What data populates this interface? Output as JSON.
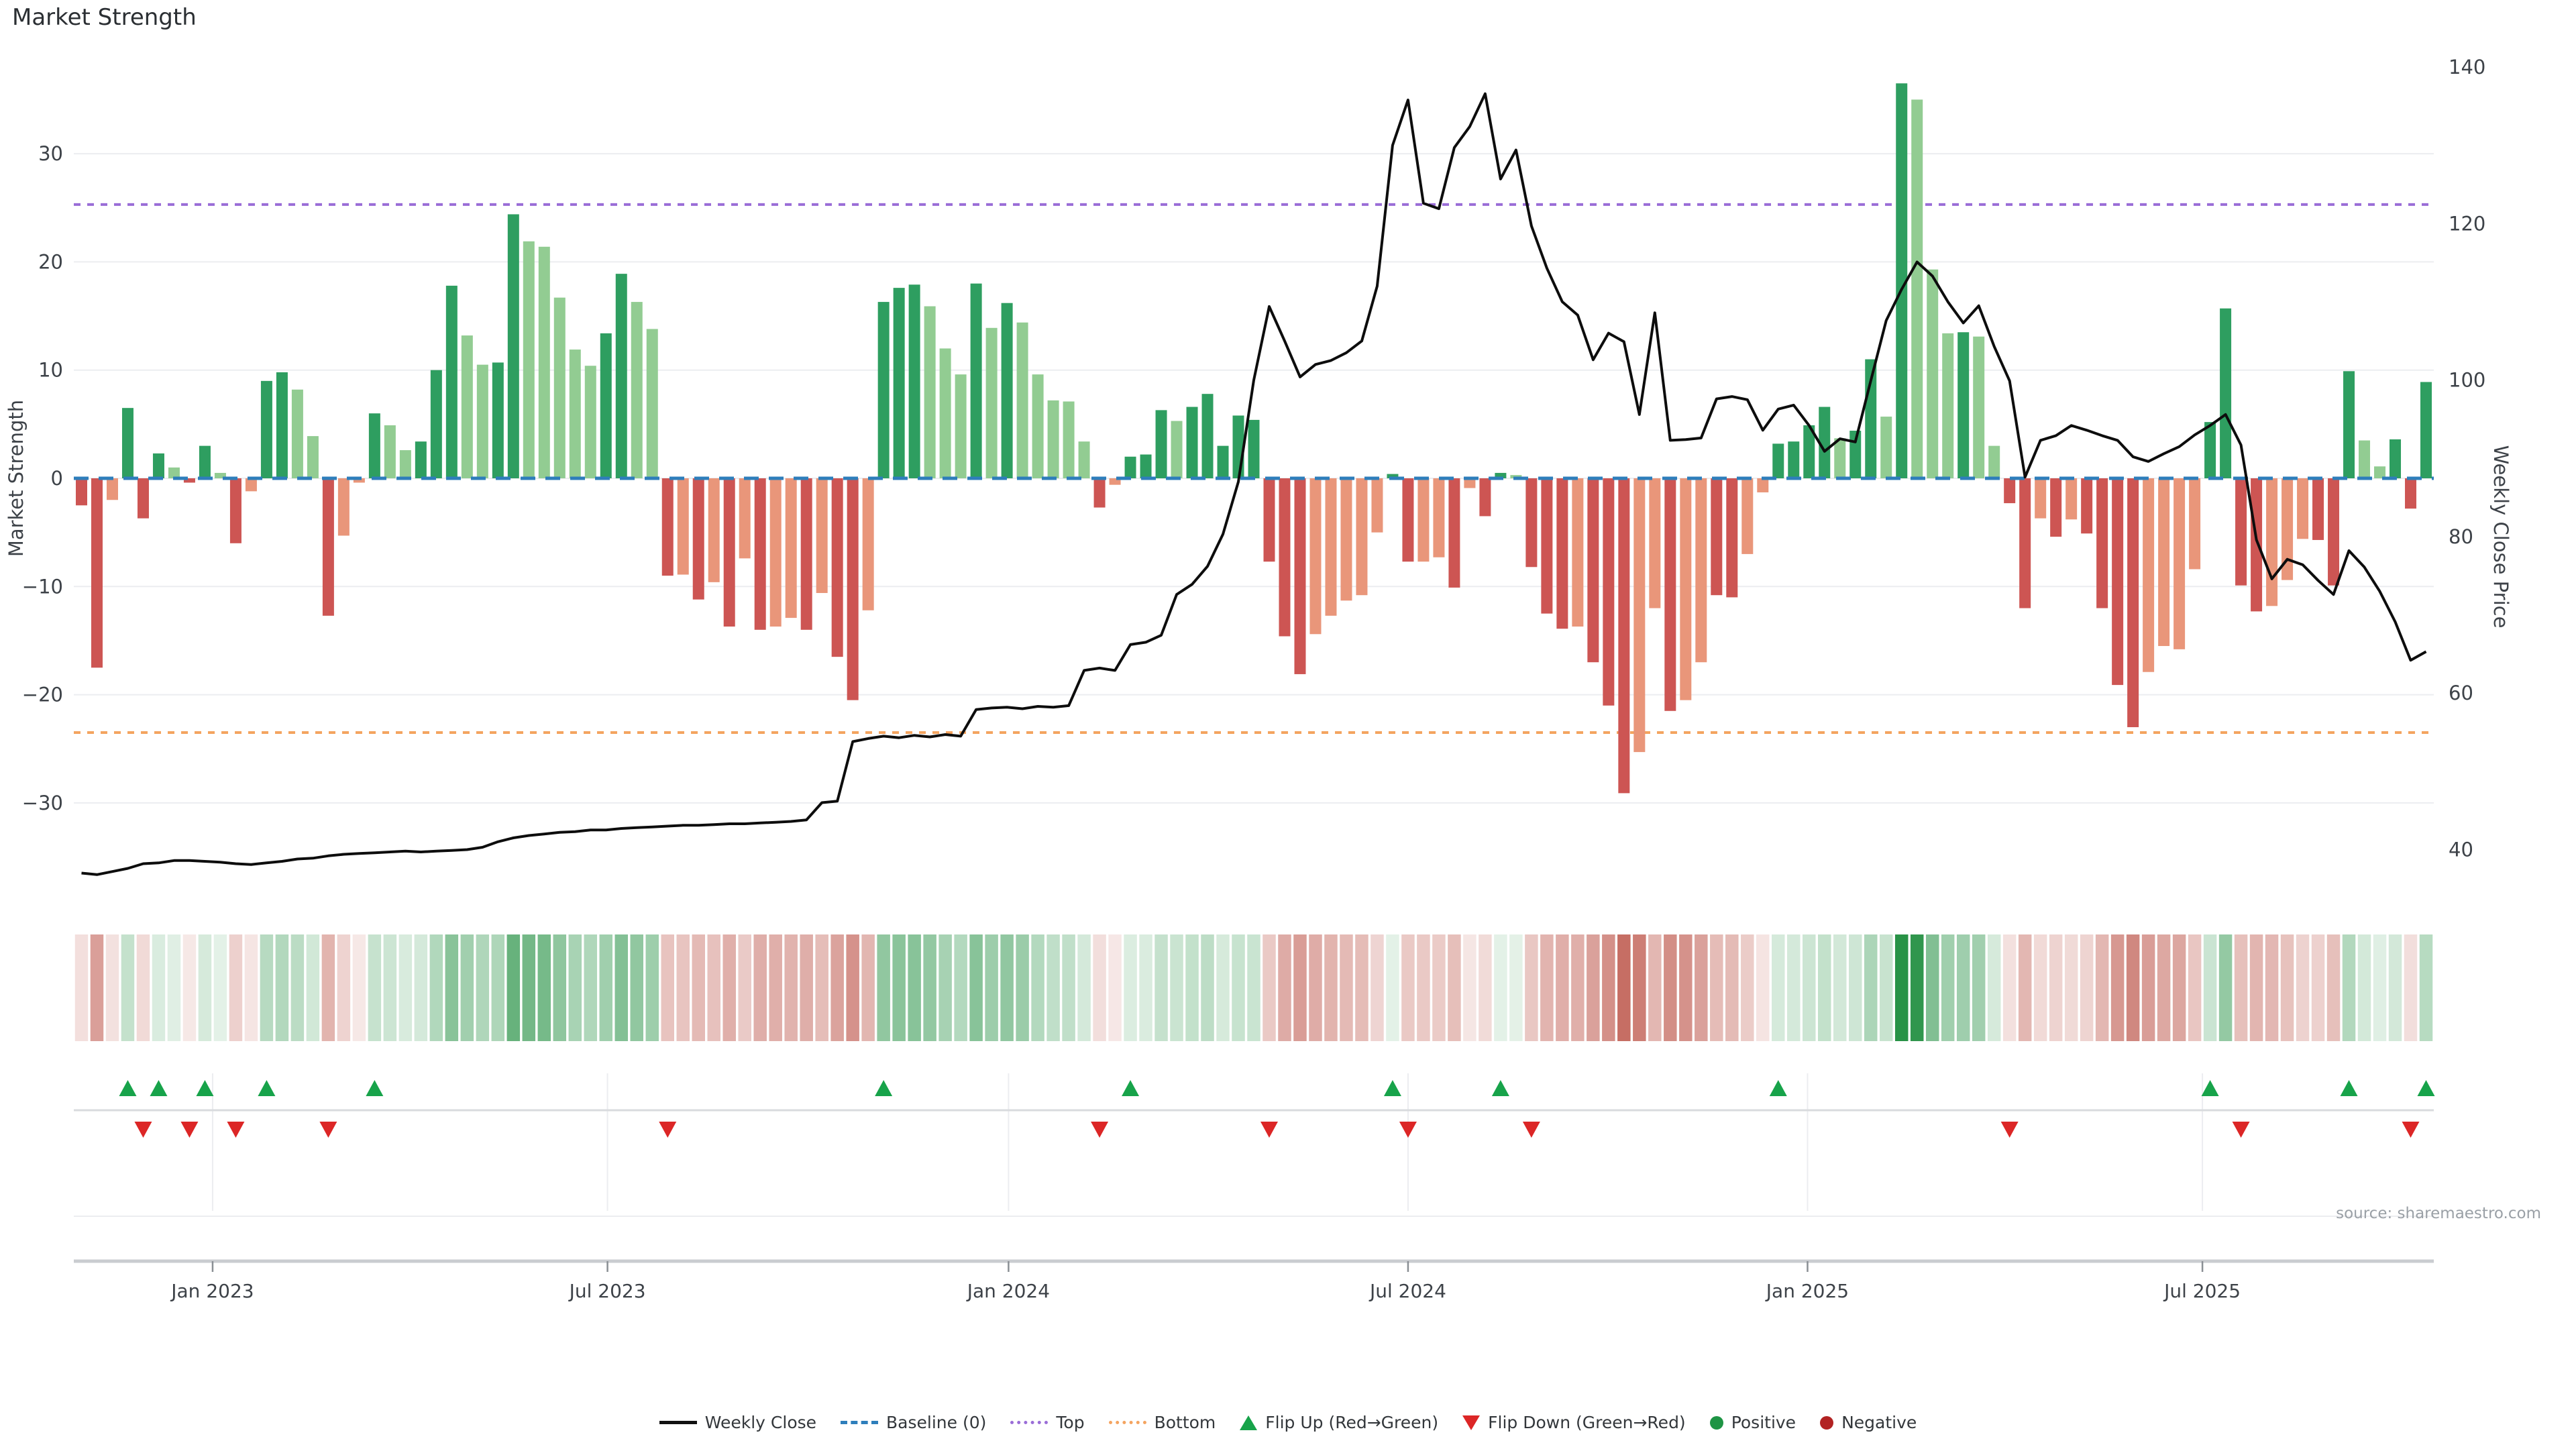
{
  "title": "Market Strength",
  "source": {
    "text": "source: sharemaestro.com"
  },
  "axes": {
    "left_title": "Market Strength",
    "right_title": "Weekly Close Price",
    "left_ticks": [
      30,
      20,
      10,
      0,
      -10,
      -20,
      -30
    ],
    "right_ticks": [
      140,
      120,
      100,
      80,
      60,
      40
    ]
  },
  "colors": {
    "bar_pos_dark": "#2e9e60",
    "bar_pos_light": "#92cc92",
    "bar_neg_dark": "#cd5553",
    "bar_neg_light": "#e9967a",
    "baseline": "#2e7ebb",
    "top_line": "#9a6dd7",
    "bottom_line": "#f4a460",
    "price_line": "#0d0d0d",
    "flip_up": "#17a34a",
    "flip_down": "#dc2626",
    "positive_dot": "#1e9444",
    "negative_dot": "#b22222",
    "grid": "#ecedf0",
    "spine": "#c9ccd0",
    "tick_text": "#3d4248",
    "heat_green": [
      40,
      146,
      70
    ],
    "heat_red": [
      186,
      78,
      66
    ]
  },
  "legend": {
    "items": [
      {
        "label": "Weekly Close",
        "swatch": "line"
      },
      {
        "label": "Baseline (0)",
        "swatch": "dashed"
      },
      {
        "label": "Top",
        "swatch": "dotted"
      },
      {
        "label": "Bottom",
        "swatch": "dotted-orange"
      },
      {
        "label": "Flip Up (Red→Green)",
        "swatch": "triangle-up"
      },
      {
        "label": "Flip Down (Green→Red)",
        "swatch": "triangle-down"
      },
      {
        "label": "Positive",
        "swatch": "circle-green"
      },
      {
        "label": "Negative",
        "swatch": "circle-red"
      }
    ]
  },
  "chart_data": {
    "type": "bar",
    "subtype": "bar+line+heatmap combo, weekly",
    "title": "Market Strength",
    "xlabel": "",
    "ylabel_left": "Market Strength",
    "ylabel_right": "Weekly Close Price",
    "ylim_left": [
      -38,
      38
    ],
    "ylim_right": [
      32,
      145
    ],
    "grid": "horizontal",
    "legend_position": "bottom-center",
    "baseline": 0,
    "top_threshold": 25.3,
    "bottom_threshold": -23.5,
    "weeks": 153,
    "x_ticks": [
      {
        "label": "Jan 2023",
        "week": 8.5
      },
      {
        "label": "Jul 2023",
        "week": 34.1
      },
      {
        "label": "Jan 2024",
        "week": 60.1
      },
      {
        "label": "Jul 2024",
        "week": 86.0
      },
      {
        "label": "Jan 2025",
        "week": 111.9
      },
      {
        "label": "Jul 2025",
        "week": 137.5
      }
    ],
    "series": [
      {
        "name": "Market Strength",
        "type": "bar",
        "axis": "left",
        "values": [
          -2.5,
          -17.5,
          -2,
          6.5,
          -3.7,
          2.3,
          1,
          -0.4,
          3,
          0.5,
          -6,
          -1.2,
          9,
          9.8,
          8.2,
          3.9,
          -12.7,
          -5.3,
          -0.4,
          6,
          4.9,
          2.6,
          3.4,
          10,
          17.8,
          13.2,
          10.5,
          10.7,
          24.4,
          21.9,
          21.4,
          16.7,
          11.9,
          10.4,
          13.4,
          18.9,
          16.3,
          13.8,
          -9,
          -8.9,
          -11.2,
          -9.6,
          -13.7,
          -7.4,
          -14,
          -13.7,
          -12.9,
          -14,
          -10.6,
          -16.5,
          -20.5,
          -12.2,
          16.3,
          17.6,
          17.9,
          15.9,
          12,
          9.6,
          18,
          13.9,
          16.2,
          14.4,
          9.6,
          7.2,
          7.1,
          3.4,
          -2.7,
          -0.6,
          2,
          2.2,
          6.3,
          5.3,
          6.6,
          7.8,
          3,
          5.8,
          5.4,
          -7.7,
          -14.6,
          -18.1,
          -14.4,
          -12.7,
          -11.3,
          -10.8,
          -5,
          0.4,
          -7.7,
          -7.7,
          -7.3,
          -10.1,
          -0.9,
          -3.5,
          0.5,
          0.3,
          -8.2,
          -12.5,
          -13.9,
          -13.7,
          -17,
          -21,
          -29.1,
          -25.3,
          -12,
          -21.5,
          -20.5,
          -17,
          -10.8,
          -11,
          -7,
          -1.3,
          3.2,
          3.4,
          4.9,
          6.6,
          3.7,
          4.4,
          11,
          5.7,
          36.5,
          35,
          19.3,
          13.4,
          13.5,
          13.1,
          3,
          -2.3,
          -12,
          -3.7,
          -5.4,
          -3.8,
          -5.1,
          -12,
          -19.1,
          -23,
          -17.9,
          -15.5,
          -15.8,
          -8.4,
          5.2,
          15.7,
          -9.9,
          -12.3,
          -11.8,
          -9.4,
          -5.6,
          -5.7,
          -9.9,
          9.9,
          3.5,
          1.1,
          3.6,
          -2.8,
          8.9
        ],
        "tones": [
          "d",
          "d",
          "l",
          "d",
          "d",
          "d",
          "l",
          "d",
          "d",
          "l",
          "d",
          "l",
          "d",
          "d",
          "l",
          "l",
          "d",
          "l",
          "l",
          "d",
          "l",
          "l",
          "d",
          "d",
          "d",
          "l",
          "l",
          "d",
          "d",
          "l",
          "l",
          "l",
          "l",
          "l",
          "d",
          "d",
          "l",
          "l",
          "d",
          "l",
          "d",
          "l",
          "d",
          "l",
          "d",
          "l",
          "l",
          "d",
          "l",
          "d",
          "d",
          "l",
          "d",
          "d",
          "d",
          "l",
          "l",
          "l",
          "d",
          "l",
          "d",
          "l",
          "l",
          "l",
          "l",
          "l",
          "d",
          "l",
          "d",
          "d",
          "d",
          "l",
          "d",
          "d",
          "d",
          "d",
          "d",
          "d",
          "d",
          "d",
          "l",
          "l",
          "l",
          "l",
          "l",
          "d",
          "d",
          "l",
          "l",
          "d",
          "l",
          "d",
          "d",
          "l",
          "d",
          "d",
          "d",
          "l",
          "d",
          "d",
          "d",
          "l",
          "l",
          "d",
          "l",
          "l",
          "d",
          "d",
          "l",
          "l",
          "d",
          "d",
          "d",
          "d",
          "l",
          "d",
          "d",
          "l",
          "d",
          "l",
          "l",
          "l",
          "d",
          "l",
          "l",
          "d",
          "d",
          "l",
          "d",
          "l",
          "d",
          "d",
          "d",
          "d",
          "l",
          "l",
          "l",
          "l",
          "d",
          "d",
          "d",
          "d",
          "l",
          "l",
          "l",
          "d",
          "d",
          "d",
          "l",
          "l",
          "d",
          "d",
          "d"
        ]
      },
      {
        "name": "Weekly Close",
        "type": "line",
        "axis": "right",
        "values": [
          37.0,
          36.8,
          37.2,
          37.6,
          38.2,
          38.3,
          38.6,
          38.6,
          38.5,
          38.4,
          38.2,
          38.1,
          38.3,
          38.5,
          38.8,
          38.9,
          39.2,
          39.4,
          39.5,
          39.6,
          39.7,
          39.8,
          39.7,
          39.8,
          39.9,
          40.0,
          40.3,
          41.0,
          41.5,
          41.8,
          42.0,
          42.2,
          42.3,
          42.5,
          42.5,
          42.7,
          42.8,
          42.9,
          43.0,
          43.1,
          43.1,
          43.2,
          43.3,
          43.3,
          43.4,
          43.5,
          43.6,
          43.8,
          46.0,
          46.2,
          53.8,
          54.2,
          54.5,
          54.3,
          54.6,
          54.4,
          54.7,
          54.5,
          57.9,
          58.1,
          58.2,
          58.0,
          58.3,
          58.2,
          58.4,
          62.9,
          63.2,
          62.9,
          66.2,
          66.5,
          67.4,
          72.6,
          73.9,
          76.2,
          80.3,
          87.0,
          100.0,
          109.4,
          105.0,
          100.4,
          102.0,
          102.5,
          103.5,
          105.0,
          112.0,
          130.0,
          135.8,
          122.6,
          121.9,
          129.7,
          132.4,
          136.6,
          125.7,
          129.4,
          119.7,
          114.3,
          110.0,
          108.3,
          102.6,
          106.0,
          104.9,
          95.6,
          108.6,
          92.3,
          92.4,
          92.6,
          97.6,
          97.9,
          97.5,
          93.6,
          96.3,
          96.8,
          94.2,
          90.9,
          92.5,
          92.1,
          99.9,
          107.6,
          111.6,
          115.1,
          113.3,
          110.0,
          107.3,
          109.5,
          104.3,
          99.9,
          87.6,
          92.3,
          92.9,
          94.2,
          93.6,
          92.9,
          92.3,
          90.2,
          89.6,
          90.6,
          91.5,
          93.0,
          94.2,
          95.6,
          91.7,
          79.6,
          74.6,
          77.1,
          76.4,
          74.4,
          72.6,
          78.2,
          76.1,
          73.0,
          69.1,
          64.2,
          65.3
        ]
      }
    ],
    "heatmap": {
      "derived_from": "Market Strength",
      "max_abs": 36.5,
      "min_intensity": 0.12
    },
    "flip_up_weeks": [
      3,
      5,
      8,
      12,
      19,
      52,
      68,
      85,
      92,
      110,
      138,
      147,
      152
    ],
    "flip_down_weeks": [
      4,
      7,
      10,
      16,
      38,
      66,
      77,
      86,
      94,
      125,
      140,
      151
    ]
  }
}
